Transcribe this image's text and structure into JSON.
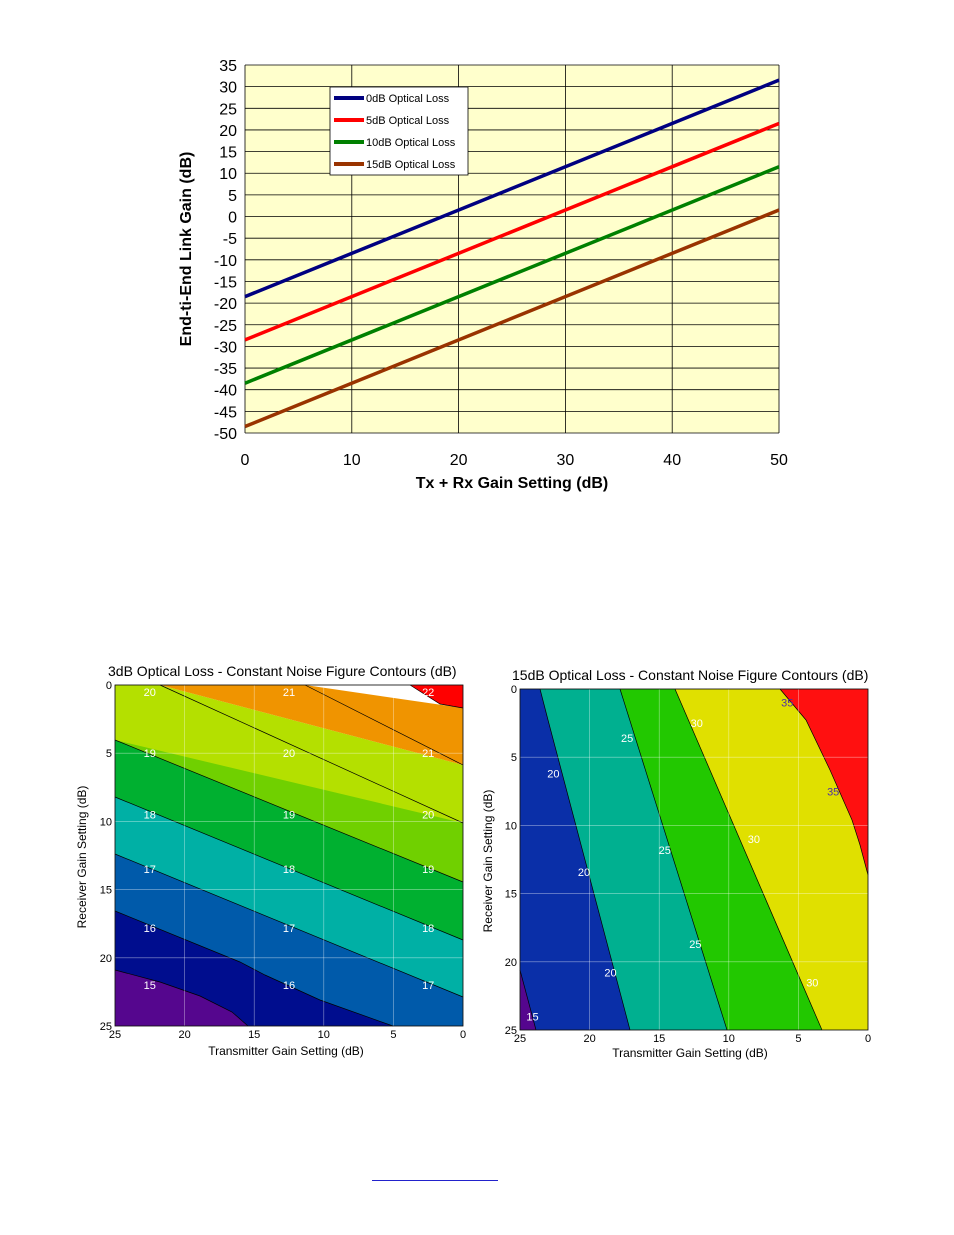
{
  "colors": {
    "plot_bg": "#ffffcc",
    "grid": "#000000",
    "series": [
      "#000080",
      "#ff0000",
      "#008000",
      "#993300"
    ],
    "contour_left": [
      "#55068e",
      "#000d8e",
      "#005aaa",
      "#00b0a5",
      "#00b030",
      "#70d000",
      "#b4e000",
      "#f09400",
      "#ff0000"
    ],
    "contour_right": [
      "#55068e",
      "#0a2fa8",
      "#00b090",
      "#22c800",
      "#e0e000",
      "#ff1010"
    ]
  },
  "chart_data": [
    {
      "type": "line",
      "title": "",
      "xlabel": "Tx + Rx Gain Setting (dB)",
      "ylabel": "End-ti-End Link Gain (dB)",
      "xlim": [
        0,
        50
      ],
      "ylim": [
        -50,
        35
      ],
      "x_ticks": [
        "0",
        "10",
        "20",
        "30",
        "40",
        "50"
      ],
      "y_ticks": [
        "35",
        "30",
        "25",
        "20",
        "15",
        "10",
        "5",
        "0",
        "-5",
        "-10",
        "-15",
        "-20",
        "-25",
        "-30",
        "-35",
        "-40",
        "-45",
        "-50"
      ],
      "grid": true,
      "legend_position": "upper-left-inside",
      "x": [
        0,
        50
      ],
      "series": [
        {
          "name": "0dB Optical Loss",
          "values": [
            -18.5,
            31.5
          ]
        },
        {
          "name": "5dB Optical Loss",
          "values": [
            -28.5,
            21.5
          ]
        },
        {
          "name": "10dB Optical Loss",
          "values": [
            -38.5,
            11.5
          ]
        },
        {
          "name": "15dB Optical Loss",
          "values": [
            -48.5,
            1.5
          ]
        }
      ]
    },
    {
      "type": "heatmap",
      "title": "3dB Optical Loss - Constant Noise Figure Contours (dB)",
      "xlabel": "Transmitter Gain Setting (dB)",
      "ylabel": "Receiver Gain Setting (dB)",
      "xlim": [
        25,
        0
      ],
      "ylim": [
        0,
        25
      ],
      "x_ticks": [
        "25",
        "20",
        "15",
        "10",
        "5",
        "0"
      ],
      "y_ticks": [
        "0",
        "5",
        "10",
        "15",
        "20",
        "25"
      ],
      "levels": [
        15,
        16,
        17,
        18,
        19,
        20,
        21,
        22
      ],
      "contour_labels": [
        {
          "text": "20",
          "tx": 22.5,
          "rx": 0.5
        },
        {
          "text": "21",
          "tx": 12.5,
          "rx": 0.5
        },
        {
          "text": "22",
          "tx": 2.5,
          "rx": 0.5
        },
        {
          "text": "19",
          "tx": 22.5,
          "rx": 5
        },
        {
          "text": "20",
          "tx": 12.5,
          "rx": 5
        },
        {
          "text": "21",
          "tx": 2.5,
          "rx": 5
        },
        {
          "text": "18",
          "tx": 22.5,
          "rx": 9.5
        },
        {
          "text": "19",
          "tx": 12.5,
          "rx": 9.5
        },
        {
          "text": "20",
          "tx": 2.5,
          "rx": 9.5
        },
        {
          "text": "17",
          "tx": 22.5,
          "rx": 13.5
        },
        {
          "text": "18",
          "tx": 12.5,
          "rx": 13.5
        },
        {
          "text": "19",
          "tx": 2.5,
          "rx": 13.5
        },
        {
          "text": "16",
          "tx": 22.5,
          "rx": 17.8
        },
        {
          "text": "17",
          "tx": 12.5,
          "rx": 17.8
        },
        {
          "text": "18",
          "tx": 2.5,
          "rx": 17.8
        },
        {
          "text": "15",
          "tx": 22.5,
          "rx": 22
        },
        {
          "text": "16",
          "tx": 12.5,
          "rx": 22
        },
        {
          "text": "17",
          "tx": 2.5,
          "rx": 22
        }
      ]
    },
    {
      "type": "heatmap",
      "title": "15dB Optical Loss - Constant Noise Figure Contours (dB)",
      "xlabel": "Transmitter Gain Setting (dB)",
      "ylabel": "Receiver Gain Setting (dB)",
      "xlim": [
        25,
        0
      ],
      "ylim": [
        0,
        25
      ],
      "x_ticks": [
        "25",
        "20",
        "15",
        "10",
        "5",
        "0"
      ],
      "y_ticks": [
        "0",
        "5",
        "10",
        "15",
        "20",
        "25"
      ],
      "levels": [
        15,
        20,
        25,
        30,
        35
      ],
      "contour_labels": [
        {
          "text": "35",
          "tx": 5.8,
          "rx": 1
        },
        {
          "text": "35",
          "tx": 2.5,
          "rx": 7.5
        },
        {
          "text": "30",
          "tx": 12.3,
          "rx": 2.5
        },
        {
          "text": "30",
          "tx": 8.2,
          "rx": 11
        },
        {
          "text": "30",
          "tx": 4,
          "rx": 21.5
        },
        {
          "text": "25",
          "tx": 17.3,
          "rx": 3.6
        },
        {
          "text": "25",
          "tx": 14.6,
          "rx": 11.8
        },
        {
          "text": "25",
          "tx": 12.4,
          "rx": 18.7
        },
        {
          "text": "20",
          "tx": 22.6,
          "rx": 6.2
        },
        {
          "text": "20",
          "tx": 20.4,
          "rx": 13.4
        },
        {
          "text": "20",
          "tx": 18.5,
          "rx": 20.8
        },
        {
          "text": "15",
          "tx": 24.1,
          "rx": 24
        }
      ]
    }
  ]
}
